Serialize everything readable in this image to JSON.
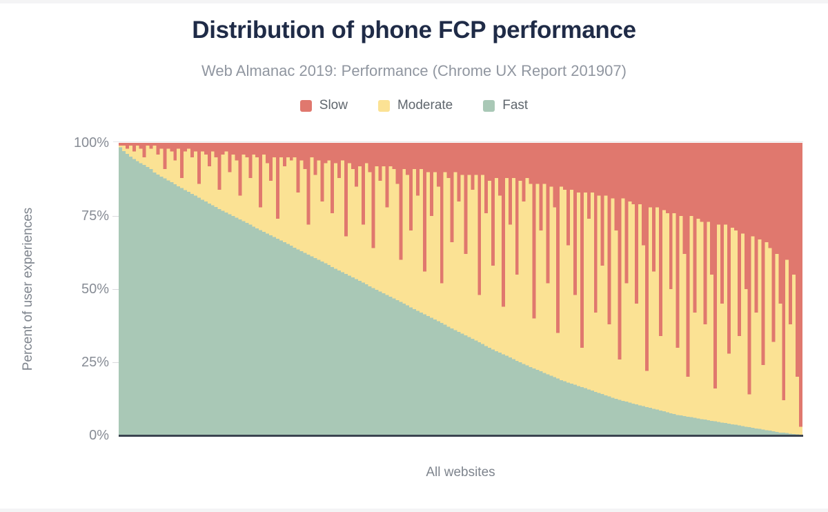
{
  "title": "Distribution of phone FCP performance",
  "subtitle": "Web Almanac 2019: Performance (Chrome UX Report 201907)",
  "legend": [
    {
      "key": "slow",
      "label": "Slow",
      "color": "#e0786e"
    },
    {
      "key": "moderate",
      "label": "Moderate",
      "color": "#fbe294"
    },
    {
      "key": "fast",
      "label": "Fast",
      "color": "#a9c8b6"
    }
  ],
  "colors": {
    "slow": "#e0786e",
    "moderate": "#fbe294",
    "fast": "#a9c8b6",
    "title": "#1f2b47",
    "subtitle": "#9096a0",
    "axis_text": "#7e848d",
    "tick_text": "#878c95",
    "axis_line": "#3b4450"
  },
  "y_axis": {
    "label": "Percent of user experiences",
    "ticks": [
      "100%",
      "75%",
      "50%",
      "25%",
      "0%"
    ]
  },
  "x_axis": {
    "label": "All websites"
  },
  "chart_data": {
    "type": "bar",
    "variant": "stacked-percent-area",
    "title": "Distribution of phone FCP performance",
    "subtitle": "Web Almanac 2019: Performance (Chrome UX Report 201907)",
    "xlabel": "All websites",
    "ylabel": "Percent of user experiences",
    "ylim": [
      0,
      100
    ],
    "yticks": [
      "0%",
      "25%",
      "50%",
      "75%",
      "100%"
    ],
    "legend_position": "top-center",
    "grid": false,
    "series_order_top_to_bottom": [
      "Slow",
      "Moderate",
      "Fast"
    ],
    "categories_note": "Websites sorted by descending share of fast FCP experiences; continuum sampled as 200 bars",
    "moderate_note": "moderate_pct = 100 - fast_pct - slow_pct",
    "fast_pct": [
      98.5,
      97.2,
      96.2,
      95.3,
      94.5,
      93.8,
      93.1,
      92.4,
      91.7,
      91.0,
      89.9,
      89.2,
      88.5,
      87.8,
      87.2,
      86.5,
      85.8,
      85.2,
      84.5,
      83.8,
      83.2,
      82.5,
      81.9,
      81.2,
      80.6,
      79.9,
      79.3,
      78.7,
      78.1,
      77.4,
      76.8,
      76.2,
      75.6,
      75.0,
      74.4,
      73.8,
      73.2,
      72.6,
      72.0,
      71.4,
      70.8,
      70.2,
      69.6,
      69.0,
      68.4,
      67.8,
      67.2,
      66.6,
      66.0,
      65.4,
      64.8,
      64.2,
      63.6,
      63.0,
      62.4,
      61.8,
      61.2,
      60.6,
      60.0,
      59.4,
      58.8,
      58.2,
      57.6,
      57.0,
      56.4,
      55.8,
      55.2,
      54.6,
      54.0,
      53.4,
      52.8,
      52.2,
      51.6,
      51.0,
      50.4,
      49.8,
      49.2,
      48.6,
      48.0,
      47.4,
      46.8,
      46.2,
      45.6,
      45.0,
      44.4,
      43.8,
      43.2,
      42.6,
      42.0,
      41.4,
      40.8,
      40.2,
      39.6,
      39.0,
      38.4,
      37.8,
      37.2,
      36.6,
      36.0,
      35.4,
      34.8,
      34.2,
      33.6,
      33.0,
      32.4,
      31.8,
      31.2,
      30.6,
      30.0,
      29.4,
      28.8,
      28.3,
      27.7,
      27.2,
      26.6,
      26.1,
      25.5,
      25.0,
      24.4,
      23.9,
      23.4,
      22.9,
      22.4,
      21.9,
      21.4,
      20.9,
      20.4,
      19.9,
      19.4,
      18.9,
      18.5,
      18.1,
      17.7,
      17.3,
      16.9,
      16.5,
      16.1,
      15.7,
      15.3,
      14.9,
      14.5,
      14.1,
      13.7,
      13.3,
      12.9,
      12.5,
      12.1,
      11.8,
      11.5,
      11.2,
      10.9,
      10.6,
      10.3,
      10.0,
      9.7,
      9.4,
      9.1,
      8.8,
      8.5,
      8.2,
      7.9,
      7.6,
      7.3,
      7.0,
      6.8,
      6.6,
      6.4,
      6.2,
      6.0,
      5.8,
      5.6,
      5.4,
      5.2,
      5.0,
      4.8,
      4.6,
      4.4,
      4.2,
      4.0,
      3.8,
      3.6,
      3.4,
      3.2,
      3.0,
      2.8,
      2.6,
      2.4,
      2.2,
      2.0,
      1.8,
      1.6,
      1.4,
      1.2,
      1.0,
      0.9,
      0.8,
      0.6,
      0.5,
      0.4,
      0.2
    ],
    "slow_pct": [
      1,
      1,
      2,
      1,
      3,
      1,
      2,
      5,
      1,
      2,
      1,
      4,
      2,
      9,
      2,
      3,
      6,
      2,
      12,
      3,
      2,
      5,
      3,
      14,
      3,
      4,
      8,
      3,
      5,
      16,
      4,
      3,
      10,
      4,
      6,
      18,
      4,
      5,
      12,
      4,
      5,
      22,
      4,
      7,
      13,
      5,
      26,
      5,
      8,
      5,
      6,
      5,
      17,
      6,
      9,
      28,
      5,
      11,
      6,
      20,
      7,
      6,
      24,
      7,
      12,
      6,
      32,
      7,
      9,
      15,
      8,
      28,
      7,
      10,
      36,
      8,
      13,
      8,
      22,
      8,
      9,
      14,
      40,
      9,
      11,
      30,
      9,
      18,
      9,
      44,
      10,
      25,
      10,
      15,
      48,
      10,
      12,
      34,
      10,
      20,
      11,
      38,
      11,
      16,
      11,
      52,
      11,
      24,
      13,
      42,
      12,
      18,
      56,
      12,
      28,
      12,
      45,
      13,
      20,
      12,
      14,
      60,
      14,
      30,
      14,
      48,
      15,
      22,
      65,
      15,
      16,
      35,
      16,
      52,
      17,
      70,
      17,
      26,
      17,
      58,
      18,
      42,
      18,
      62,
      19,
      30,
      74,
      19,
      48,
      20,
      21,
      55,
      21,
      35,
      78,
      22,
      44,
      22,
      66,
      23,
      24,
      50,
      24,
      70,
      25,
      38,
      80,
      25,
      58,
      26,
      27,
      62,
      27,
      45,
      84,
      28,
      55,
      28,
      72,
      29,
      30,
      66,
      31,
      50,
      86,
      32,
      58,
      33,
      76,
      34,
      36,
      68,
      38,
      55,
      88,
      40,
      62,
      45,
      80,
      97
    ]
  }
}
